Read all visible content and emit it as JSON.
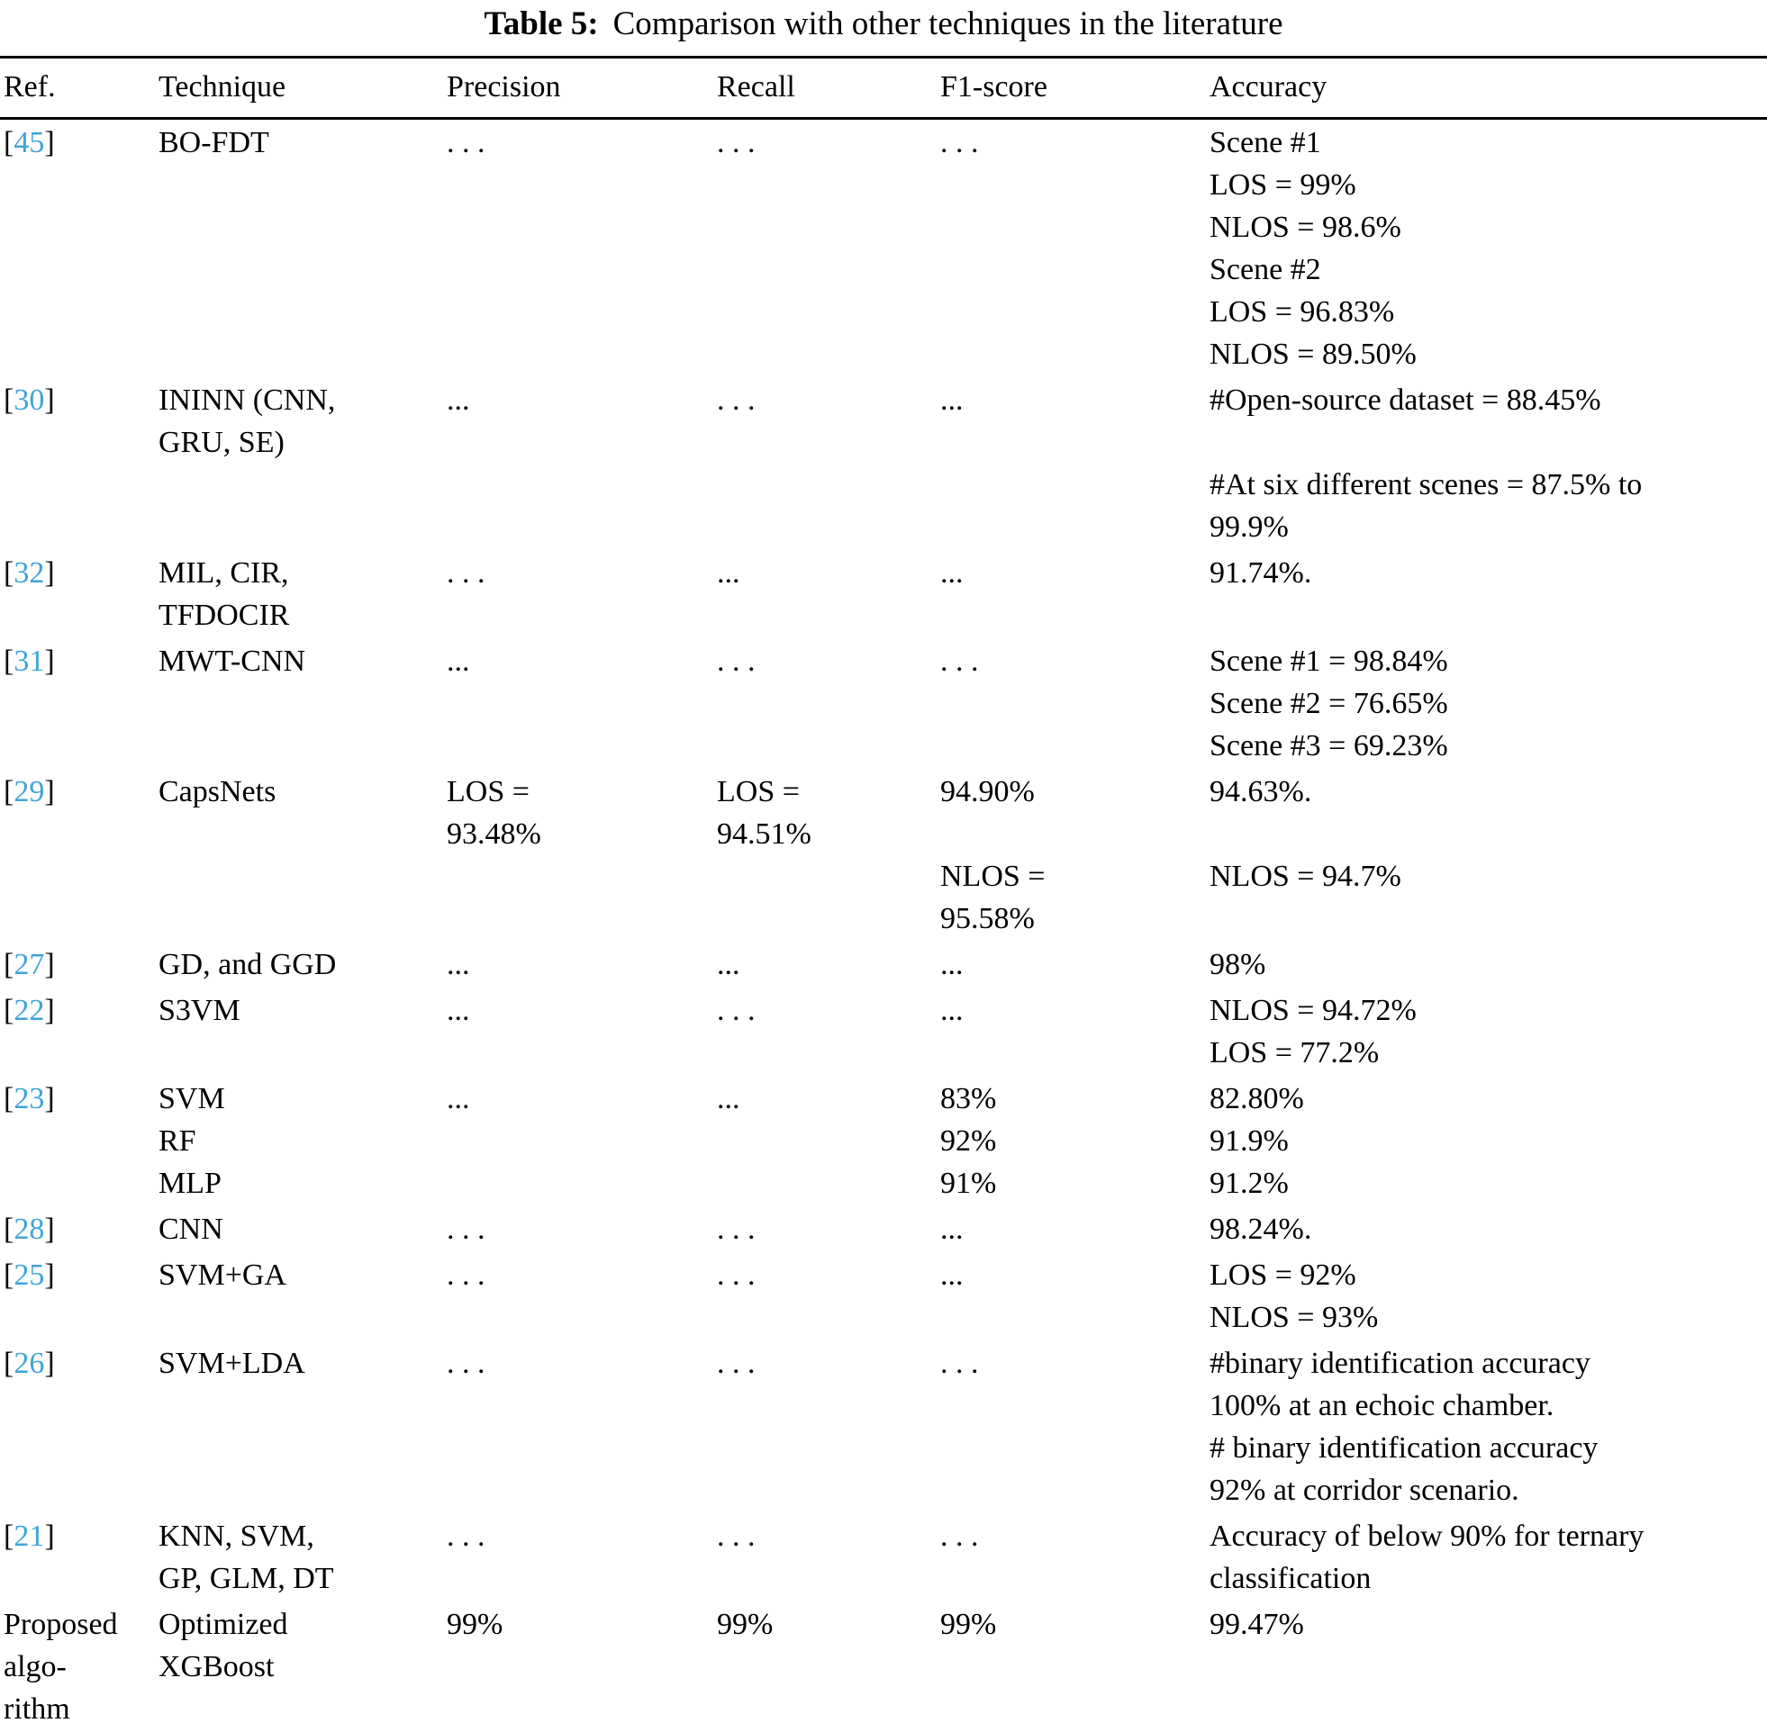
{
  "caption": {
    "label": "Table 5:",
    "text": "Comparison with other techniques in the literature"
  },
  "punct": {
    "open": "[",
    "close": "]"
  },
  "columns": [
    "Ref.",
    "Technique",
    "Precision",
    "Recall",
    "F1-score",
    "Accuracy"
  ],
  "accent_color": "#3fa3da",
  "rows": [
    {
      "ref": "45",
      "technique": "BO-FDT",
      "precision": ". . .",
      "recall": ". . .",
      "f1": ". . .",
      "accuracy": "Scene #1\nLOS = 99%\nNLOS = 98.6%\nScene #2\nLOS = 96.83%\nNLOS = 89.50%"
    },
    {
      "ref": "30",
      "technique": "ININN (CNN,\nGRU, SE)",
      "precision": "...",
      "recall": ". . .",
      "f1": "...",
      "accuracy": "#Open-source dataset = 88.45%\n\n#At six different scenes = 87.5% to\n99.9%"
    },
    {
      "ref": "32",
      "technique": "MIL, CIR,\nTFDOCIR",
      "precision": ". . .",
      "recall": "...",
      "f1": "...",
      "accuracy": "91.74%."
    },
    {
      "ref": "31",
      "technique": "MWT-CNN",
      "precision": "...",
      "recall": ". . .",
      "f1": ". . .",
      "accuracy": "Scene #1 = 98.84%\nScene #2 = 76.65%\nScene #3 = 69.23%"
    },
    {
      "ref": "29",
      "technique": "CapsNets",
      "precision": "LOS =\n93.48%",
      "recall": "LOS =\n94.51%",
      "f1": "94.90%\n\nNLOS =\n95.58%",
      "accuracy": "94.63%.\n\nNLOS = 94.7%"
    },
    {
      "ref": "27",
      "technique": "GD, and GGD",
      "precision": "...",
      "recall": "...",
      "f1": "...",
      "accuracy": "98%"
    },
    {
      "ref": "22",
      "technique": "S3VM",
      "precision": "...",
      "recall": ". . .",
      "f1": "...",
      "accuracy": "NLOS = 94.72%\nLOS = 77.2%"
    },
    {
      "ref": "23",
      "technique": "SVM\nRF\nMLP",
      "precision": "...",
      "recall": "...",
      "f1": "83%\n92%\n91%",
      "accuracy": "82.80%\n91.9%\n91.2%"
    },
    {
      "ref": "28",
      "technique": "CNN",
      "precision": ". . .",
      "recall": ". . .",
      "f1": "...",
      "accuracy": "98.24%."
    },
    {
      "ref": "25",
      "technique": "SVM+GA",
      "precision": ". . .",
      "recall": ". . .",
      "f1": "...",
      "accuracy": "LOS = 92%\nNLOS = 93%"
    },
    {
      "ref": "26",
      "technique": "SVM+LDA",
      "precision": ". . .",
      "recall": ". . .",
      "f1": ". . .",
      "accuracy": "#binary identification accuracy\n100% at an echoic chamber.\n# binary identification accuracy\n92% at corridor scenario."
    },
    {
      "ref": "21",
      "technique": "KNN, SVM,\nGP, GLM, DT",
      "precision": ". . .",
      "recall": ". . .",
      "f1": ". . .",
      "accuracy": "Accuracy of below 90% for ternary\nclassification"
    },
    {
      "ref_text": "Proposed\nalgo-\nrithm",
      "technique": "Optimized\nXGBoost",
      "precision": "99%",
      "recall": "99%",
      "f1": "99%",
      "accuracy": "99.47%"
    }
  ]
}
